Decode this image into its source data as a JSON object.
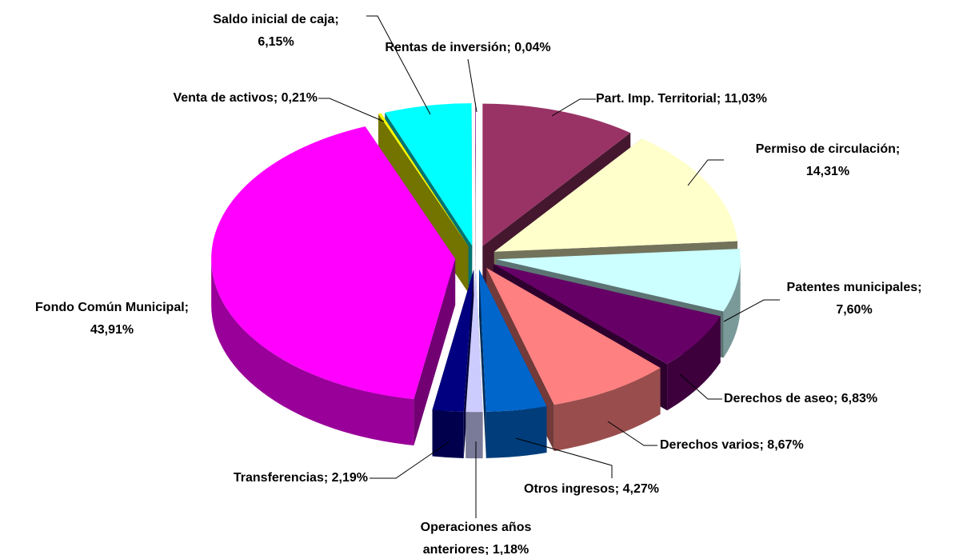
{
  "chart_data": {
    "type": "pie",
    "three_d": true,
    "exploded": true,
    "categories": [
      "Part. Imp. Territorial;",
      "Permiso de circulación;",
      "Patentes municipales;",
      "Derechos de aseo;",
      "Derechos varios;",
      "Otros ingresos;",
      "Operaciones años anteriores;",
      "Transferencias;",
      "Fondo Común Municipal;",
      "Venta de activos;",
      "Saldo inicial de caja;",
      "Rentas de inversión;"
    ],
    "values": [
      11.03,
      14.31,
      7.6,
      6.83,
      8.67,
      4.27,
      1.18,
      2.19,
      43.91,
      0.21,
      6.15,
      0.04
    ],
    "value_labels": [
      "11,03%",
      "14,31%",
      "7,60%",
      "6,83%",
      "8,67%",
      "4,27%",
      "1,18%",
      "2,19%",
      "43,91%",
      "0,21%",
      "6,15%",
      "0,04%"
    ],
    "colors": [
      "#993366",
      "#FFFFCC",
      "#CCFFFF",
      "#660066",
      "#FF8080",
      "#0066CC",
      "#CCCCFF",
      "#000080",
      "#FF00FF",
      "#FFFF00",
      "#00FFFF",
      "#800080"
    ]
  }
}
